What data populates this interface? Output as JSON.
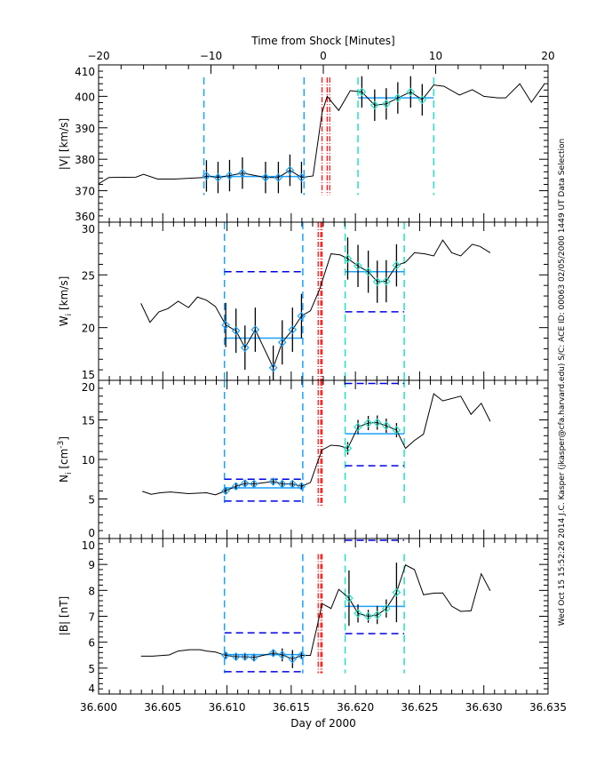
{
  "chart_data": {
    "type": "line",
    "top_axis": {
      "title": "Time from Shock [Minutes]",
      "range": [
        -20,
        20
      ],
      "major": 10,
      "minor": 2
    },
    "bottom_axis": {
      "title": "Day of 2000",
      "range": [
        36.6,
        36.635
      ],
      "major": 0.005,
      "minor_divisions": 6,
      "decimals": 3
    },
    "side_note": "Wed Oct 15 15:52:26 2014   J.C. Kasper (jkasper@cfa.harvard.edu)   S/C: ACE ID: 00063 02/05/2000   1449 UT Data Selection",
    "colors": {
      "line": "#000000",
      "window1": "#1aa0ff",
      "window2": "#22e0c4",
      "mean": "#1aa0ff",
      "limits": "#0000e6",
      "shock": "#ff0000"
    },
    "panels": [
      {
        "ylabel": {
          "main": "|V|",
          "sub": "",
          "unit": " [km/s]",
          "sup": "",
          "close": ""
        },
        "ylim": [
          360,
          410
        ],
        "major": 10,
        "minor": 2,
        "vline_range": [
          368.6,
          406
        ],
        "shock_lines": [
          36.6174,
          36.6178,
          36.618
        ],
        "line": [
          [
            36.6,
            372.2
          ],
          [
            36.6008,
            374.2
          ],
          [
            36.6029,
            374.3
          ],
          [
            36.6035,
            375.2
          ],
          [
            36.6046,
            373.7
          ],
          [
            36.6059,
            373.7
          ],
          [
            36.6082,
            374.2
          ],
          [
            36.6084,
            374.7
          ],
          [
            36.6093,
            374.2
          ],
          [
            36.6102,
            374.8
          ],
          [
            36.6112,
            375.6
          ],
          [
            36.613,
            374.2
          ],
          [
            36.614,
            374.2
          ],
          [
            36.6149,
            376.5
          ],
          [
            36.6158,
            374.2
          ],
          [
            36.6167,
            374.7
          ],
          [
            36.6174,
            394.8
          ],
          [
            36.6178,
            400
          ],
          [
            36.6187,
            395.5
          ],
          [
            36.6196,
            401.8
          ],
          [
            36.6205,
            401.4
          ],
          [
            36.6215,
            397.2
          ],
          [
            36.6224,
            397.6
          ],
          [
            36.6233,
            399.5
          ],
          [
            36.6243,
            401.4
          ],
          [
            36.6252,
            398.9
          ],
          [
            36.6261,
            403.6
          ],
          [
            36.6269,
            403.2
          ],
          [
            36.6281,
            400.4
          ],
          [
            36.6291,
            402.1
          ],
          [
            36.63,
            400
          ],
          [
            36.6311,
            399.5
          ],
          [
            36.6317,
            399.5
          ],
          [
            36.6328,
            404
          ],
          [
            36.6337,
            398.1
          ],
          [
            36.6347,
            403.8
          ]
        ],
        "windows": [
          {
            "start": 36.6082,
            "end": 36.616,
            "color_key": "window1",
            "mean": 374.5,
            "limits": [],
            "points": [
              [
                36.6084,
                374.7,
                5
              ],
              [
                36.6093,
                374.2,
                5
              ],
              [
                36.6102,
                374.8,
                5
              ],
              [
                36.6112,
                375.6,
                5
              ],
              [
                36.613,
                374.2,
                5
              ],
              [
                36.614,
                374.2,
                5
              ],
              [
                36.6149,
                376.5,
                5
              ],
              [
                36.6158,
                374.2,
                5
              ]
            ]
          },
          {
            "start": 36.6202,
            "end": 36.6261,
            "color_key": "window2",
            "mean": 399.5,
            "limits": [],
            "points": [
              [
                36.6205,
                401.4,
                5
              ],
              [
                36.6215,
                397.2,
                5
              ],
              [
                36.6224,
                397.6,
                5
              ],
              [
                36.6233,
                399.5,
                5
              ],
              [
                36.6243,
                401.4,
                5
              ],
              [
                36.6252,
                398.9,
                5
              ]
            ]
          }
        ]
      },
      {
        "ylabel": {
          "main": "W",
          "sub": "i",
          "unit": " [km/s]",
          "sup": "",
          "close": ""
        },
        "ylim": [
          15,
          30
        ],
        "major": 5,
        "minor": 1,
        "vline_range": [
          15,
          30
        ],
        "shock_lines": [
          36.6171,
          36.6173,
          36.6174
        ],
        "line": [
          [
            36.6033,
            22.3
          ],
          [
            36.604,
            20.5
          ],
          [
            36.6047,
            21.5
          ],
          [
            36.6054,
            21.8
          ],
          [
            36.6062,
            22.5
          ],
          [
            36.607,
            21.9
          ],
          [
            36.6077,
            22.9
          ],
          [
            36.6084,
            22.6
          ],
          [
            36.6091,
            22.0
          ],
          [
            36.6099,
            20.25
          ],
          [
            36.6107,
            19.7
          ],
          [
            36.6114,
            18.1
          ],
          [
            36.6122,
            19.8
          ],
          [
            36.6136,
            16.2
          ],
          [
            36.6143,
            18.6
          ],
          [
            36.6151,
            19.8
          ],
          [
            36.6158,
            21.1
          ],
          [
            36.6165,
            21.6
          ],
          [
            36.6172,
            23.6
          ],
          [
            36.6181,
            27.0
          ],
          [
            36.6188,
            26.9
          ],
          [
            36.6194,
            26.55
          ],
          [
            36.6202,
            25.85
          ],
          [
            36.621,
            25.3
          ],
          [
            36.6217,
            24.35
          ],
          [
            36.6224,
            24.4
          ],
          [
            36.6232,
            25.9
          ],
          [
            36.6239,
            26.2
          ],
          [
            36.6246,
            27.1
          ],
          [
            36.6254,
            27.0
          ],
          [
            36.6261,
            26.8
          ],
          [
            36.6268,
            28.3
          ],
          [
            36.6275,
            27.1
          ],
          [
            36.6282,
            26.8
          ],
          [
            36.6291,
            27.9
          ],
          [
            36.6297,
            27.7
          ],
          [
            36.6305,
            27.1
          ]
        ],
        "windows": [
          {
            "start": 36.6098,
            "end": 36.6159,
            "color_key": "window1",
            "mean": 19.0,
            "limits": [
              25.3
            ],
            "points": [
              [
                36.6099,
                20.25,
                2.1
              ],
              [
                36.6107,
                19.7,
                2.1
              ],
              [
                36.6114,
                18.1,
                2.1
              ],
              [
                36.6122,
                19.8,
                2.1
              ],
              [
                36.6136,
                16.2,
                2.1
              ],
              [
                36.6143,
                18.6,
                2.1
              ],
              [
                36.6151,
                19.8,
                2.1
              ],
              [
                36.6158,
                21.1,
                2.1
              ]
            ]
          },
          {
            "start": 36.6192,
            "end": 36.6238,
            "color_key": "window2",
            "mean": 25.3,
            "limits": [
              21.5
            ],
            "points": [
              [
                36.6194,
                26.55,
                2.0
              ],
              [
                36.6202,
                25.85,
                2.0
              ],
              [
                36.621,
                25.3,
                2.0
              ],
              [
                36.6217,
                24.35,
                2.0
              ],
              [
                36.6224,
                24.4,
                2.0
              ],
              [
                36.6232,
                25.9,
                2.0
              ]
            ]
          }
        ]
      },
      {
        "ylabel": {
          "main": "N",
          "sub": "i",
          "unit": " [cm",
          "sup": "-3",
          "close": "]"
        },
        "ylim": [
          0,
          20
        ],
        "major": 5,
        "minor": 1,
        "vline_range": [
          4.1,
          20
        ],
        "shock_lines": [
          36.6171,
          36.6173,
          36.6174
        ],
        "line": [
          [
            36.6034,
            5.97
          ],
          [
            36.6041,
            5.59
          ],
          [
            36.6048,
            5.78
          ],
          [
            36.6056,
            5.89
          ],
          [
            36.607,
            5.67
          ],
          [
            36.6084,
            5.78
          ],
          [
            36.6091,
            5.52
          ],
          [
            36.6099,
            6.04
          ],
          [
            36.6107,
            6.6
          ],
          [
            36.6114,
            6.97
          ],
          [
            36.6121,
            6.9
          ],
          [
            36.6136,
            7.2
          ],
          [
            36.6143,
            6.9
          ],
          [
            36.6151,
            6.9
          ],
          [
            36.6158,
            6.6
          ],
          [
            36.6165,
            7.09
          ],
          [
            36.6171,
            9.9
          ],
          [
            36.6174,
            11.2
          ],
          [
            36.6181,
            11.8
          ],
          [
            36.6188,
            11.7
          ],
          [
            36.6194,
            11.4
          ],
          [
            36.6202,
            14.1
          ],
          [
            36.621,
            14.6
          ],
          [
            36.6217,
            14.66
          ],
          [
            36.6224,
            14.26
          ],
          [
            36.6232,
            13.7
          ],
          [
            36.6239,
            11.4
          ],
          [
            36.6246,
            12.4
          ],
          [
            36.6253,
            13.2
          ],
          [
            36.6261,
            18.3
          ],
          [
            36.6268,
            17.4
          ],
          [
            36.6282,
            18.0
          ],
          [
            36.629,
            15.7
          ],
          [
            36.6298,
            17.1
          ],
          [
            36.6305,
            14.8
          ]
        ],
        "windows": [
          {
            "start": 36.6098,
            "end": 36.6159,
            "color_key": "window1",
            "mean": 6.4,
            "limits": [
              7.5,
              4.74
            ],
            "points": [
              [
                36.6099,
                6.04,
                0.4
              ],
              [
                36.6107,
                6.6,
                0.4
              ],
              [
                36.6114,
                6.97,
                0.4
              ],
              [
                36.6121,
                6.9,
                0.4
              ],
              [
                36.6136,
                7.2,
                0.4
              ],
              [
                36.6143,
                6.9,
                0.4
              ],
              [
                36.6151,
                6.9,
                0.4
              ],
              [
                36.6158,
                6.6,
                0.4
              ]
            ]
          },
          {
            "start": 36.6192,
            "end": 36.6238,
            "color_key": "window2",
            "mean": 13.25,
            "limits": [
              19.6,
              9.2
            ],
            "points": [
              [
                36.6194,
                11.4,
                0.8
              ],
              [
                36.6202,
                14.1,
                0.9
              ],
              [
                36.621,
                14.6,
                0.9
              ],
              [
                36.6217,
                14.66,
                0.9
              ],
              [
                36.6224,
                14.26,
                0.9
              ],
              [
                36.6232,
                13.7,
                0.9
              ]
            ]
          }
        ]
      },
      {
        "ylabel": {
          "main": "|B|",
          "sub": "",
          "unit": " [nT]",
          "sup": "",
          "close": ""
        },
        "ylim": [
          4,
          10
        ],
        "major": 1,
        "minor": 0.2,
        "vline_range": [
          4.8,
          9.4
        ],
        "shock_lines": [
          36.6171,
          36.6173,
          36.6174
        ],
        "line": [
          [
            36.6033,
            5.46
          ],
          [
            36.6042,
            5.46
          ],
          [
            36.6055,
            5.51
          ],
          [
            36.6062,
            5.66
          ],
          [
            36.6071,
            5.71
          ],
          [
            36.6079,
            5.71
          ],
          [
            36.6084,
            5.66
          ],
          [
            36.6091,
            5.62
          ],
          [
            36.6099,
            5.49
          ],
          [
            36.6107,
            5.44
          ],
          [
            36.6114,
            5.44
          ],
          [
            36.6121,
            5.41
          ],
          [
            36.6136,
            5.58
          ],
          [
            36.6143,
            5.51
          ],
          [
            36.6151,
            5.35
          ],
          [
            36.6158,
            5.49
          ],
          [
            36.6165,
            5.49
          ],
          [
            36.6171,
            6.79
          ],
          [
            36.6174,
            7.49
          ],
          [
            36.6181,
            7.3
          ],
          [
            36.6187,
            8.04
          ],
          [
            36.6195,
            7.7
          ],
          [
            36.6202,
            7.11
          ],
          [
            36.621,
            7.0
          ],
          [
            36.6217,
            7.05
          ],
          [
            36.6224,
            7.3
          ],
          [
            36.6232,
            7.92
          ],
          [
            36.6239,
            8.98
          ],
          [
            36.6246,
            8.8
          ],
          [
            36.6253,
            7.83
          ],
          [
            36.6261,
            7.89
          ],
          [
            36.6268,
            7.9
          ],
          [
            36.6275,
            7.39
          ],
          [
            36.6282,
            7.19
          ],
          [
            36.629,
            7.21
          ],
          [
            36.6298,
            8.64
          ],
          [
            36.6305,
            7.98
          ]
        ],
        "windows": [
          {
            "start": 36.6098,
            "end": 36.6159,
            "color_key": "window1",
            "mean": 5.52,
            "limits": [
              6.36,
              4.86
            ],
            "points": [
              [
                36.6099,
                5.49,
                0.12
              ],
              [
                36.6107,
                5.44,
                0.15
              ],
              [
                36.6114,
                5.44,
                0.1
              ],
              [
                36.6121,
                5.41,
                0.15
              ],
              [
                36.6136,
                5.58,
                0.1
              ],
              [
                36.6143,
                5.51,
                0.25
              ],
              [
                36.6151,
                5.35,
                0.35
              ],
              [
                36.6158,
                5.49,
                0.12
              ]
            ]
          },
          {
            "start": 36.6192,
            "end": 36.6238,
            "color_key": "window2",
            "mean": 7.38,
            "limits": [
              9.93,
              6.33
            ],
            "points": [
              [
                36.6195,
                7.7,
                1.07
              ],
              [
                36.6202,
                7.11,
                0.35
              ],
              [
                36.621,
                7.0,
                0.25
              ],
              [
                36.6217,
                7.05,
                0.35
              ],
              [
                36.6224,
                7.3,
                0.35
              ],
              [
                36.6232,
                7.92,
                1.15
              ]
            ]
          }
        ]
      }
    ]
  }
}
